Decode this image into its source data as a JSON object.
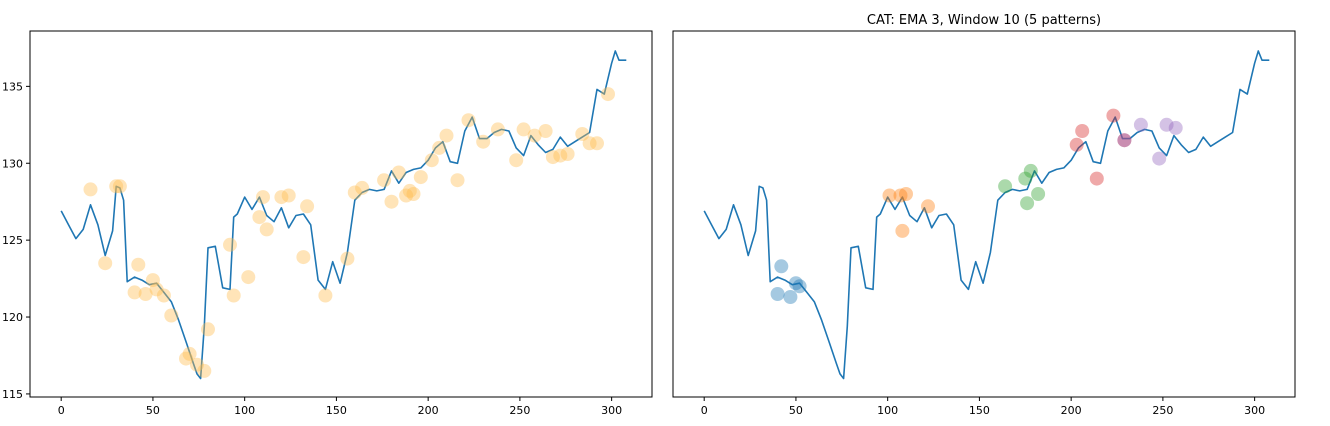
{
  "chart_data": [
    {
      "type": "line",
      "title": "",
      "xlabel": "",
      "ylabel": "",
      "xlim": [
        -17,
        322
      ],
      "ylim": [
        114.8,
        138.6
      ],
      "xticks": [
        0,
        50,
        100,
        150,
        200,
        250,
        300
      ],
      "yticks": [
        115,
        120,
        125,
        130,
        135
      ],
      "grid": false,
      "series": [
        {
          "style": "line",
          "color": "#1f77b4",
          "x": [
            0,
            4,
            8,
            12,
            16,
            20,
            24,
            28,
            30,
            32,
            34,
            36,
            40,
            44,
            48,
            52,
            56,
            60,
            64,
            68,
            72,
            74,
            76,
            78,
            80,
            84,
            88,
            92,
            94,
            96,
            100,
            104,
            108,
            112,
            116,
            120,
            124,
            128,
            132,
            136,
            140,
            144,
            148,
            152,
            156,
            160,
            164,
            168,
            172,
            176,
            180,
            184,
            188,
            192,
            196,
            200,
            204,
            208,
            212,
            216,
            220,
            224,
            228,
            232,
            236,
            240,
            244,
            248,
            252,
            256,
            260,
            264,
            268,
            272,
            276,
            280,
            284,
            288,
            292,
            296,
            300,
            302,
            304,
            308
          ],
          "y": [
            126.9,
            126.0,
            125.1,
            125.7,
            127.3,
            126.0,
            124.0,
            125.6,
            128.5,
            128.4,
            127.6,
            122.3,
            122.6,
            122.4,
            122.1,
            122.2,
            121.6,
            121.0,
            119.8,
            118.4,
            117.0,
            116.3,
            116.0,
            119.4,
            124.5,
            124.6,
            121.9,
            121.8,
            126.5,
            126.7,
            127.8,
            127.0,
            127.8,
            126.6,
            126.2,
            127.1,
            125.8,
            126.6,
            126.7,
            126.0,
            122.4,
            121.8,
            123.6,
            122.2,
            124.2,
            127.6,
            128.1,
            128.3,
            128.2,
            128.3,
            129.5,
            128.7,
            129.4,
            129.6,
            129.7,
            130.2,
            131.0,
            131.4,
            130.1,
            130.0,
            132.1,
            133.0,
            131.6,
            131.6,
            132.0,
            132.2,
            132.1,
            131.0,
            130.5,
            131.8,
            131.2,
            130.7,
            130.9,
            131.7,
            131.1,
            131.4,
            131.7,
            132.0,
            134.8,
            134.5,
            136.5,
            137.3,
            136.7,
            136.7
          ]
        },
        {
          "style": "markers",
          "color": "#ffbb4d",
          "x": [
            16,
            24,
            30,
            32,
            40,
            42,
            46,
            50,
            52,
            56,
            60,
            68,
            70,
            74,
            78,
            80,
            92,
            94,
            102,
            108,
            110,
            112,
            120,
            124,
            132,
            134,
            144,
            156,
            160,
            164,
            176,
            180,
            184,
            188,
            190,
            192,
            196,
            202,
            206,
            210,
            216,
            222,
            230,
            238,
            248,
            252,
            258,
            264,
            268,
            272,
            276,
            284,
            288,
            292,
            298
          ],
          "y": [
            128.3,
            123.5,
            128.5,
            128.5,
            121.6,
            123.4,
            121.5,
            122.4,
            121.8,
            121.4,
            120.1,
            117.3,
            117.6,
            116.9,
            116.5,
            119.2,
            124.7,
            121.4,
            122.6,
            126.5,
            127.8,
            125.7,
            127.8,
            127.9,
            123.9,
            127.2,
            121.4,
            123.8,
            128.1,
            128.4,
            128.9,
            127.5,
            129.4,
            127.9,
            128.2,
            128.0,
            129.1,
            130.2,
            131.0,
            131.8,
            128.9,
            132.8,
            131.4,
            132.2,
            130.2,
            132.2,
            131.8,
            132.1,
            130.4,
            130.5,
            130.6,
            131.9,
            131.3,
            131.3,
            134.5
          ]
        }
      ]
    },
    {
      "type": "line",
      "title": "CAT: EMA 3, Window 10 (5 patterns)",
      "xlabel": "",
      "ylabel": "",
      "xlim": [
        -17,
        322
      ],
      "ylim": [
        114.8,
        138.6
      ],
      "xticks": [
        0,
        50,
        100,
        150,
        200,
        250,
        300
      ],
      "yticks": [],
      "grid": false,
      "series": [
        {
          "style": "line",
          "color": "#1f77b4",
          "x": [
            0,
            4,
            8,
            12,
            16,
            20,
            24,
            28,
            30,
            32,
            34,
            36,
            40,
            44,
            48,
            52,
            56,
            60,
            64,
            68,
            72,
            74,
            76,
            78,
            80,
            84,
            88,
            92,
            94,
            96,
            100,
            104,
            108,
            112,
            116,
            120,
            124,
            128,
            132,
            136,
            140,
            144,
            148,
            152,
            156,
            160,
            164,
            168,
            172,
            176,
            180,
            184,
            188,
            192,
            196,
            200,
            204,
            208,
            212,
            216,
            220,
            224,
            228,
            232,
            236,
            240,
            244,
            248,
            252,
            256,
            260,
            264,
            268,
            272,
            276,
            280,
            284,
            288,
            292,
            296,
            300,
            302,
            304,
            308
          ],
          "y": [
            126.9,
            126.0,
            125.1,
            125.7,
            127.3,
            126.0,
            124.0,
            125.6,
            128.5,
            128.4,
            127.6,
            122.3,
            122.6,
            122.4,
            122.1,
            122.2,
            121.6,
            121.0,
            119.8,
            118.4,
            117.0,
            116.3,
            116.0,
            119.4,
            124.5,
            124.6,
            121.9,
            121.8,
            126.5,
            126.7,
            127.8,
            127.0,
            127.8,
            126.6,
            126.2,
            127.1,
            125.8,
            126.6,
            126.7,
            126.0,
            122.4,
            121.8,
            123.6,
            122.2,
            124.2,
            127.6,
            128.1,
            128.3,
            128.2,
            128.3,
            129.5,
            128.7,
            129.4,
            129.6,
            129.7,
            130.2,
            131.0,
            131.4,
            130.1,
            130.0,
            132.1,
            133.0,
            131.6,
            131.6,
            132.0,
            132.2,
            132.1,
            131.0,
            130.5,
            131.8,
            131.2,
            130.7,
            130.9,
            131.7,
            131.1,
            131.4,
            131.7,
            132.0,
            134.8,
            134.5,
            136.5,
            137.3,
            136.7,
            136.7
          ]
        },
        {
          "style": "markers",
          "color": "#1f77b4",
          "x": [
            40,
            42,
            47,
            50,
            52
          ],
          "y": [
            121.5,
            123.3,
            121.3,
            122.2,
            122.0
          ]
        },
        {
          "style": "markers",
          "color": "#ff7f0e",
          "x": [
            101,
            107,
            108,
            110,
            122
          ],
          "y": [
            127.9,
            127.9,
            125.6,
            128.0,
            127.2
          ]
        },
        {
          "style": "markers",
          "color": "#2ca02c",
          "x": [
            164,
            175,
            176,
            178,
            182
          ],
          "y": [
            128.5,
            129.0,
            127.4,
            129.5,
            128.0
          ]
        },
        {
          "style": "markers",
          "color": "#d62728",
          "x": [
            203,
            206,
            214,
            223,
            229
          ],
          "y": [
            131.2,
            132.1,
            129.0,
            133.1,
            131.5
          ]
        },
        {
          "style": "markers",
          "color": "#9467bd",
          "x": [
            229,
            238,
            248,
            252,
            257
          ],
          "y": [
            131.5,
            132.5,
            130.3,
            132.5,
            132.3
          ]
        }
      ]
    }
  ]
}
